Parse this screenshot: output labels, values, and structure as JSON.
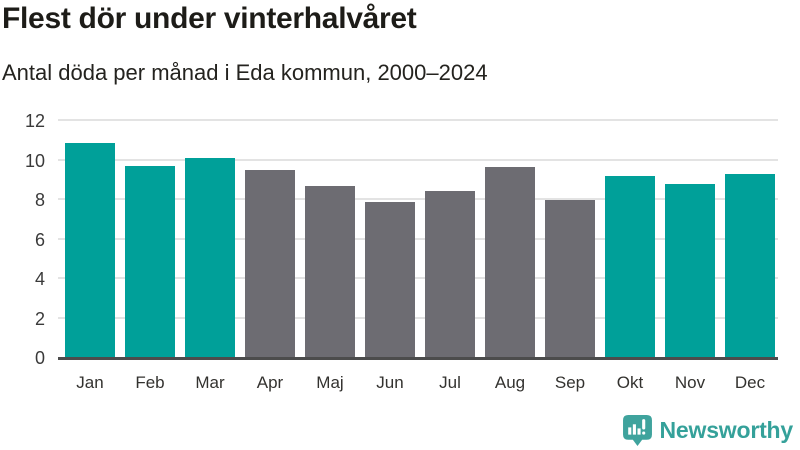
{
  "header": {
    "title": "Flest dör under vinterhalvåret",
    "subtitle": "Antal döda per månad i Eda kommun, 2000–2024"
  },
  "chart_data": {
    "type": "bar",
    "title": "Flest dör under vinterhalvåret",
    "subtitle": "Antal döda per månad i Eda kommun, 2000–2024",
    "categories": [
      "Jan",
      "Feb",
      "Mar",
      "Apr",
      "Maj",
      "Jun",
      "Jul",
      "Aug",
      "Sep",
      "Okt",
      "Nov",
      "Dec"
    ],
    "values": [
      10.85,
      9.65,
      10.1,
      9.45,
      8.65,
      7.85,
      8.4,
      9.6,
      7.95,
      9.15,
      8.75,
      9.25
    ],
    "bar_color_keys": [
      "teal",
      "teal",
      "teal",
      "gray",
      "gray",
      "gray",
      "gray",
      "gray",
      "gray",
      "teal",
      "teal",
      "teal"
    ],
    "colors": {
      "teal": "#00A099",
      "gray": "#6D6C72"
    },
    "xlabel": "",
    "ylabel": "",
    "ylim": [
      0,
      12
    ],
    "yticks": [
      0,
      2,
      4,
      6,
      8,
      10,
      12
    ],
    "grid": true,
    "legend_position": "none",
    "gridline_color": "#e3e3e3",
    "axis_line_color": "#4c4c4c"
  },
  "footer": {
    "brand": "Newsworthy",
    "brand_color": "#35A19A",
    "logo_icon": "bar-chart-speech-bubble-icon",
    "logo_icon_color": "#3FA39D"
  }
}
